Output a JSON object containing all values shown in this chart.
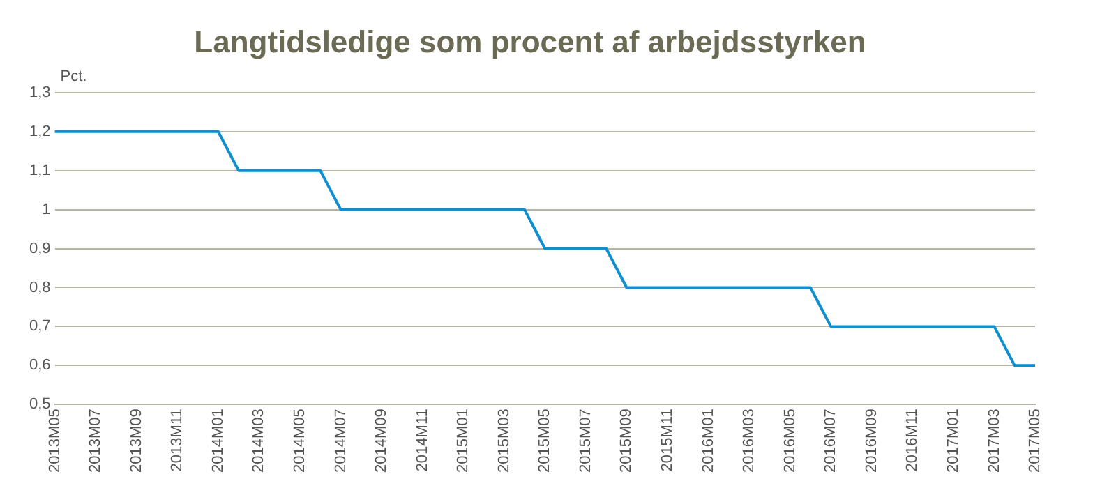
{
  "chart_data": {
    "type": "line",
    "title": "Langtidsledige som procent af arbejdsstyrken",
    "ylabel": "Pct.",
    "categories": [
      "2013M05",
      null,
      "2013M07",
      null,
      "2013M09",
      null,
      "2013M11",
      null,
      "2014M01",
      null,
      "2014M03",
      null,
      "2014M05",
      null,
      "2014M07",
      null,
      "2014M09",
      null,
      "2014M11",
      null,
      "2015M01",
      null,
      "2015M03",
      null,
      "2015M05",
      null,
      "2015M07",
      null,
      "2015M09",
      null,
      "2015M11",
      null,
      "2016M01",
      null,
      "2016M03",
      null,
      "2016M05",
      null,
      "2016M07",
      null,
      "2016M09",
      null,
      "2016M11",
      null,
      "2017M01",
      null,
      "2017M03",
      null,
      "2017M05"
    ],
    "series": [
      {
        "color": "#0f8fd0",
        "values": [
          1.2,
          1.2,
          1.2,
          1.2,
          1.2,
          1.2,
          1.2,
          1.2,
          1.2,
          1.1,
          1.1,
          1.1,
          1.1,
          1.1,
          1.0,
          1.0,
          1.0,
          1.0,
          1.0,
          1.0,
          1.0,
          1.0,
          1.0,
          1.0,
          0.9,
          0.9,
          0.9,
          0.9,
          0.8,
          0.8,
          0.8,
          0.8,
          0.8,
          0.8,
          0.8,
          0.8,
          0.8,
          0.8,
          0.7,
          0.7,
          0.7,
          0.7,
          0.7,
          0.7,
          0.7,
          0.7,
          0.7,
          0.6,
          0.6
        ]
      }
    ],
    "ylim": [
      0.5,
      1.3
    ],
    "yticks": [
      {
        "value": 0.5,
        "label": "0,5"
      },
      {
        "value": 0.6,
        "label": "0,6"
      },
      {
        "value": 0.7,
        "label": "0,7"
      },
      {
        "value": 0.8,
        "label": "0,8"
      },
      {
        "value": 0.9,
        "label": "0,9"
      },
      1,
      {
        "value": 1.1,
        "label": "1,1"
      },
      {
        "value": 1.2,
        "label": "1,2"
      },
      {
        "value": 1.3,
        "label": "1,3"
      }
    ],
    "grid": "y",
    "legend": false,
    "marker": "none",
    "line_style": "solid"
  }
}
